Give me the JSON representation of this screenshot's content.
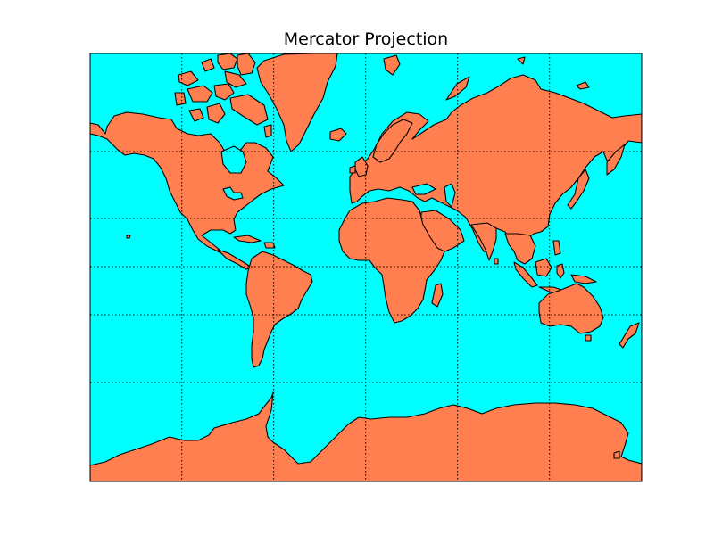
{
  "title": "Mercator Projection",
  "colors": {
    "ocean": "#00ffff",
    "land": "#ff7f50",
    "coastline": "#000000",
    "graticule": "#000000",
    "frame": "#000000",
    "background": "#ffffff"
  },
  "map": {
    "projection": "mercator",
    "graticule": "dotted",
    "meridians_drawn": true,
    "parallels_drawn": true,
    "landmasses": [
      "greenland",
      "north-america",
      "south-america",
      "eurasia",
      "africa",
      "australia",
      "antarctica",
      "madagascar",
      "arctic-islands",
      "indonesia-islands",
      "japan",
      "new-zealand"
    ]
  }
}
